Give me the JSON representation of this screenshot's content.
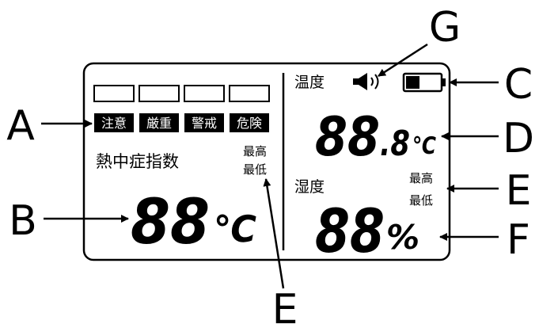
{
  "left_panel": {
    "level_labels": [
      "注意",
      "厳重",
      "警戒",
      "危険"
    ],
    "wbgt_label": "熱中症指数",
    "max_label": "最高",
    "min_label": "最低",
    "wbgt_digits": "88",
    "wbgt_unit": "℃"
  },
  "right_panel": {
    "temp_label": "温度",
    "temp_digits": "88",
    "temp_decimal": ".8",
    "temp_unit": "℃",
    "humidity_label": "湿度",
    "max_label": "最高",
    "min_label": "最低",
    "humidity_digits": "88",
    "humidity_unit": "%"
  },
  "callouts": {
    "A": "A",
    "B": "B",
    "C": "C",
    "D": "D",
    "E_right": "E",
    "E_bottom": "E",
    "F": "F",
    "G": "G"
  },
  "icons": [
    "speaker-icon",
    "battery-icon"
  ],
  "colors": {
    "ink": "#000000",
    "background": "#ffffff"
  }
}
